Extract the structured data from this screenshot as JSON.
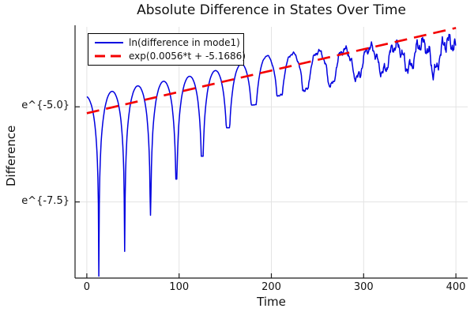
{
  "title": "Absolute Difference in States Over Time",
  "axes": {
    "x_label": "Time",
    "y_label": "Difference",
    "x_ticks": [
      0,
      100,
      200,
      300,
      400
    ],
    "y_ticks": [
      {
        "label": "e^{-5.0}",
        "ln": -5.0
      },
      {
        "label": "e^{-7.5}",
        "ln": -7.5
      }
    ]
  },
  "legend": {
    "items": [
      {
        "label": "ln(difference in mode1)",
        "color": "#0000e0",
        "style": "solid"
      },
      {
        "label": "exp(0.0056*t + -5.1686)",
        "color": "#f40000",
        "style": "dashed"
      }
    ]
  },
  "colors": {
    "series1": "#0000e0",
    "series2": "#f40000",
    "grid": "#e3e3e3",
    "axis": "#1c1c1c",
    "text": "#111111",
    "background": "#ffffff"
  },
  "chart_data": {
    "type": "line",
    "title": "Absolute Difference in States Over Time",
    "xlabel": "Time",
    "ylabel": "Difference",
    "y_scale": "ln",
    "grid": true,
    "legend_position": "top-left",
    "x_range": [
      -12.8,
      412.8
    ],
    "ln_y_range": [
      -9.5,
      -2.9
    ],
    "x_ticks": [
      0,
      100,
      200,
      300,
      400
    ],
    "y_tick_lns": [
      -5.0,
      -7.5
    ],
    "series": [
      {
        "name": "ln(difference in mode1)",
        "color": "#0000e0",
        "style": "solid",
        "model": {
          "description": "ln|difference| : arcs between periodic cusp dips (~28 t apart); dips become shallower over time; curve grows noisy after t~200 and hugs the fit line",
          "t_range": [
            0,
            400
          ],
          "peak_envelope": [
            [
              0,
              -4.72
            ],
            [
              26,
              -4.6
            ],
            [
              55,
              -4.45
            ],
            [
              83,
              -4.33
            ],
            [
              111,
              -4.2
            ],
            [
              139,
              -4.05
            ],
            [
              167,
              -3.88
            ],
            [
              195,
              -3.66
            ],
            [
              223,
              -3.6
            ],
            [
              251,
              -3.55
            ],
            [
              279,
              -3.5
            ],
            [
              307,
              -3.45
            ],
            [
              335,
              -3.4
            ],
            [
              363,
              -3.34
            ],
            [
              400,
              -3.27
            ]
          ],
          "cusps": [
            [
              13,
              -9.45
            ],
            [
              41,
              -8.8
            ],
            [
              69,
              -7.85
            ],
            [
              97,
              -6.9
            ],
            [
              125,
              -6.3
            ],
            [
              153,
              -5.55
            ],
            [
              181,
              -4.95
            ],
            [
              209,
              -4.7
            ],
            [
              237,
              -4.55
            ],
            [
              265,
              -4.4
            ],
            [
              293,
              -4.2
            ],
            [
              321,
              -4.05
            ],
            [
              349,
              -3.95
            ],
            [
              377,
              -4.05
            ]
          ],
          "virtual_start": [
            -16,
            -9.45
          ],
          "virtual_end": [
            406,
            -3.9
          ],
          "cusp_softening": {
            "start": 180,
            "scale": 480,
            "min_w": 0.45
          },
          "noise": {
            "onset": 170,
            "full": 400,
            "amp": 0.32,
            "ramp_pow": 1.2,
            "components": [
              [
                0.9,
                0.55,
                0.3
              ],
              [
                2.3,
                0.3,
                1.7
              ],
              [
                5.3,
                0.15,
                0.9
              ]
            ]
          }
        }
      },
      {
        "name": "exp(0.0056*t + -5.1686)",
        "color": "#f40000",
        "style": "dashed",
        "fit": {
          "slope": 0.0056,
          "intercept": -5.1686,
          "t_range": [
            0,
            400
          ]
        }
      }
    ]
  }
}
